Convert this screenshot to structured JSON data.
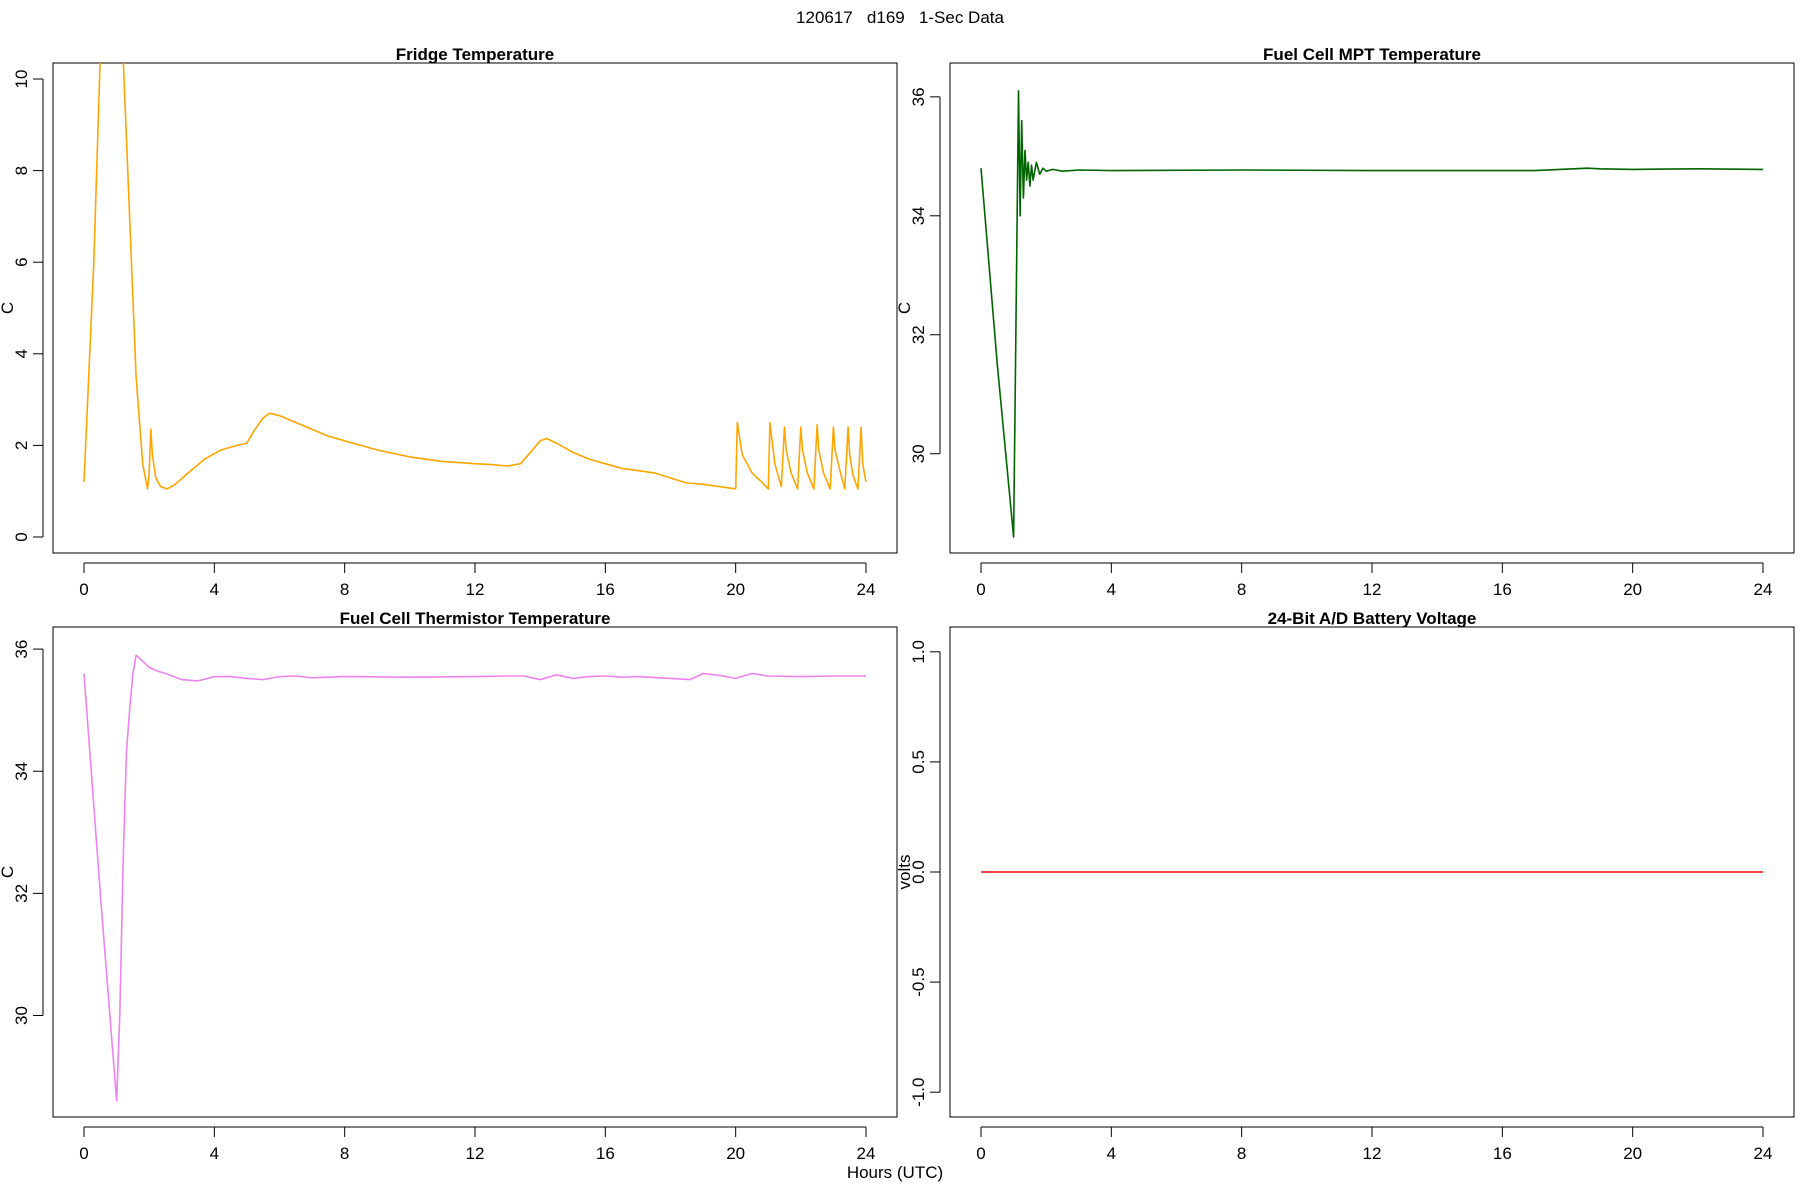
{
  "page": {
    "title": "120617   d169   1-Sec Data",
    "xlabel": "Hours (UTC)"
  },
  "chart_data": [
    {
      "type": "line",
      "title": "Fridge Temperature",
      "xlabel": "",
      "ylabel": "C",
      "xlim": [
        0,
        24
      ],
      "ylim": [
        0,
        10
      ],
      "xticks": [
        0,
        4,
        8,
        12,
        16,
        20,
        24
      ],
      "yticks": [
        0,
        2,
        4,
        6,
        8,
        10
      ],
      "ytick_labels": [
        "0",
        "2",
        "4",
        "6",
        "8",
        "10"
      ],
      "grid": false,
      "color": "#FFA500",
      "series": [
        {
          "x": [
            0.0,
            0.3,
            0.5,
            0.6,
            1.1,
            1.2,
            1.4,
            1.6,
            1.8,
            1.95,
            2.0,
            2.05,
            2.1,
            2.2,
            2.35,
            2.55,
            2.8,
            3.2,
            3.7,
            4.2,
            4.7,
            5.0,
            5.2,
            5.5,
            5.7,
            6.0,
            6.5,
            7.0,
            7.5,
            8.0,
            9.0,
            10.0,
            11.0,
            12.0,
            12.5,
            13.0,
            13.4,
            13.7,
            14.0,
            14.2,
            14.5,
            15.0,
            15.5,
            16.0,
            16.5,
            17.0,
            17.5,
            18.5,
            19.0,
            19.5,
            20.0
          ],
          "y": [
            1.2,
            6.0,
            10.5,
            12.0,
            12.0,
            10.5,
            7.0,
            3.5,
            1.6,
            1.05,
            1.4,
            2.35,
            1.8,
            1.3,
            1.1,
            1.05,
            1.15,
            1.4,
            1.7,
            1.9,
            2.0,
            2.05,
            2.3,
            2.6,
            2.7,
            2.65,
            2.5,
            2.35,
            2.2,
            2.1,
            1.9,
            1.75,
            1.65,
            1.6,
            1.58,
            1.55,
            1.6,
            1.85,
            2.1,
            2.15,
            2.05,
            1.85,
            1.7,
            1.6,
            1.5,
            1.45,
            1.4,
            1.18,
            1.15,
            1.1,
            1.05
          ]
        },
        {
          "x": [
            20.0,
            20.05,
            20.2,
            20.5,
            20.8,
            21.0,
            21.05,
            21.2,
            21.4,
            21.5,
            21.55,
            21.7,
            21.9,
            22.0,
            22.05,
            22.2,
            22.4,
            22.5,
            22.55,
            22.7,
            22.9,
            23.0,
            23.05,
            23.2,
            23.35,
            23.45,
            23.5,
            23.6,
            23.75,
            23.85,
            23.9,
            24.0
          ],
          "y": [
            1.05,
            2.5,
            1.8,
            1.4,
            1.2,
            1.05,
            2.5,
            1.6,
            1.1,
            2.4,
            1.9,
            1.4,
            1.05,
            2.4,
            1.9,
            1.4,
            1.05,
            2.45,
            1.9,
            1.4,
            1.05,
            2.4,
            1.9,
            1.45,
            1.05,
            2.4,
            1.8,
            1.35,
            1.05,
            2.4,
            1.6,
            1.2
          ]
        }
      ]
    },
    {
      "type": "line",
      "title": "Fuel Cell MPT Temperature",
      "xlabel": "",
      "ylabel": "C",
      "xlim": [
        0,
        24
      ],
      "ylim": [
        28.6,
        36.3
      ],
      "xticks": [
        0,
        4,
        8,
        12,
        16,
        20,
        24
      ],
      "yticks": [
        30,
        32,
        34,
        36
      ],
      "ytick_labels": [
        "30",
        "32",
        "34",
        "36"
      ],
      "grid": false,
      "color": "#006400",
      "series": [
        {
          "x": [
            0.0,
            0.5,
            1.0,
            1.05,
            1.15,
            1.2,
            1.25,
            1.3,
            1.35,
            1.4,
            1.45,
            1.5,
            1.55,
            1.6,
            1.7,
            1.8,
            1.9,
            2.0,
            2.2,
            2.5,
            3.0,
            4.0,
            8.0,
            12.0,
            16.0,
            17.0,
            18.6,
            19.0,
            20.0,
            22.0,
            24.0
          ],
          "y": [
            34.8,
            31.5,
            28.6,
            31.0,
            36.1,
            34.0,
            35.6,
            34.3,
            35.1,
            34.6,
            34.9,
            34.5,
            34.85,
            34.6,
            34.9,
            34.7,
            34.8,
            34.75,
            34.78,
            34.75,
            34.77,
            34.76,
            34.77,
            34.76,
            34.76,
            34.76,
            34.8,
            34.79,
            34.78,
            34.79,
            34.78
          ]
        }
      ]
    },
    {
      "type": "line",
      "title": "Fuel Cell Thermistor Temperature",
      "xlabel": "",
      "ylabel": "C",
      "xlim": [
        0,
        24
      ],
      "ylim": [
        28.6,
        36.1
      ],
      "xticks": [
        0,
        4,
        8,
        12,
        16,
        20,
        24
      ],
      "yticks": [
        30,
        32,
        34,
        36
      ],
      "ytick_labels": [
        "30",
        "32",
        "34",
        "36"
      ],
      "grid": false,
      "color": "#EE82EE",
      "series": [
        {
          "x": [
            0.0,
            0.5,
            1.0,
            1.1,
            1.2,
            1.3,
            1.4,
            1.5,
            1.6,
            1.7,
            1.8,
            2.0,
            2.2,
            2.5,
            3.0,
            3.5,
            4.0,
            4.5,
            5.0,
            5.5,
            6.0,
            6.5,
            7.0,
            8.0,
            10.0,
            12.0,
            13.0,
            13.5,
            14.0,
            14.5,
            15.0,
            15.5,
            16.0,
            16.5,
            17.0,
            18.6,
            19.0,
            19.5,
            20.0,
            20.5,
            21.0,
            22.0,
            23.0,
            24.0
          ],
          "y": [
            35.6,
            32.0,
            28.6,
            30.0,
            32.5,
            34.3,
            35.0,
            35.6,
            35.9,
            35.85,
            35.8,
            35.7,
            35.65,
            35.6,
            35.5,
            35.48,
            35.55,
            35.55,
            35.52,
            35.5,
            35.55,
            35.56,
            35.53,
            35.55,
            35.54,
            35.55,
            35.56,
            35.56,
            35.5,
            35.58,
            35.52,
            35.55,
            35.56,
            35.54,
            35.55,
            35.5,
            35.6,
            35.57,
            35.52,
            35.6,
            35.56,
            35.55,
            35.56,
            35.56
          ]
        }
      ]
    },
    {
      "type": "line",
      "title": "24-Bit A/D Battery Voltage",
      "xlabel": "",
      "ylabel": "volts",
      "xlim": [
        0,
        24
      ],
      "ylim": [
        -1.04,
        1.04
      ],
      "xticks": [
        0,
        4,
        8,
        12,
        16,
        20,
        24
      ],
      "yticks": [
        -1.0,
        -0.5,
        0.0,
        0.5,
        1.0
      ],
      "ytick_labels": [
        "-1.0",
        "-0.5",
        "0.0",
        "0.5",
        "1.0"
      ],
      "grid": false,
      "color": "#FF0000",
      "series": [
        {
          "x": [
            0,
            24
          ],
          "y": [
            0,
            0
          ]
        }
      ]
    }
  ]
}
